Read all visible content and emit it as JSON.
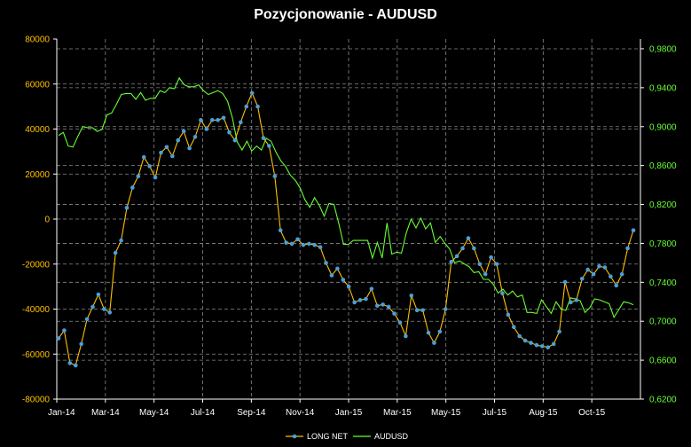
{
  "chart_data": {
    "type": "line",
    "title": "Pozycjonowanie - AUDUSD",
    "x_labels": [
      "Jan-14",
      "Mar-14",
      "May-14",
      "Jul-14",
      "Sep-14",
      "Nov-14",
      "Jan-15",
      "Mar-15",
      "May-15",
      "Jul-15",
      "Aug-15",
      "Oct-15"
    ],
    "left_axis": {
      "min": -80000,
      "max": 80000,
      "step": 20000,
      "tick_labels": [
        "-80000",
        "-60000",
        "-40000",
        "-20000",
        "0",
        "20000",
        "40000",
        "60000",
        "80000"
      ]
    },
    "right_axis": {
      "min": 0.62,
      "max": 0.99,
      "step": 0.04,
      "tick_labels": [
        "0,6200",
        "0,6600",
        "0,7000",
        "0,7400",
        "0,7800",
        "0,8200",
        "0,8600",
        "0,9000",
        "0,9400",
        "0,9800"
      ]
    },
    "grid": true,
    "legend_position": "bottom",
    "series": [
      {
        "name": "LONG NET",
        "axis": "left",
        "color": "#ffc000",
        "marker_color": "#4a9fd8",
        "values": [
          -53000,
          -49500,
          -64000,
          -65000,
          -55500,
          -44500,
          -39000,
          -33500,
          -40000,
          -41500,
          -15000,
          -9500,
          5000,
          14000,
          19000,
          27500,
          23500,
          18500,
          29500,
          32000,
          28000,
          35000,
          39000,
          31500,
          36500,
          44000,
          40000,
          44000,
          44000,
          45000,
          38500,
          35000,
          43000,
          50000,
          56000,
          50000,
          36000,
          32500,
          19000,
          -5000,
          -10500,
          -11000,
          -9000,
          -11500,
          -11000,
          -11500,
          -12500,
          -19500,
          -25000,
          -22000,
          -27000,
          -30000,
          -37000,
          -36000,
          -35500,
          -31000,
          -38500,
          -38000,
          -39000,
          -42000,
          -46000,
          -52000,
          -34000,
          -40500,
          -40500,
          -50500,
          -55000,
          -50000,
          -40000,
          -19000,
          -16500,
          -13000,
          -8500,
          -13000,
          -20000,
          -24500,
          -17000,
          -20000,
          -33000,
          -42500,
          -48000,
          -52000,
          -54000,
          -55000,
          -56000,
          -56500,
          -57000,
          -55500,
          -50000,
          -28000,
          -37000,
          -36000,
          -26500,
          -22500,
          -24500,
          -21000,
          -21500,
          -25500,
          -29500,
          -24500,
          -13000,
          -5000
        ]
      },
      {
        "name": "AUDUSD",
        "axis": "right",
        "color": "#66ff33",
        "values": [
          0.891,
          0.894,
          0.88,
          0.879,
          0.89,
          0.9,
          0.899,
          0.899,
          0.895,
          0.897,
          0.912,
          0.914,
          0.923,
          0.933,
          0.934,
          0.934,
          0.928,
          0.935,
          0.927,
          0.929,
          0.929,
          0.937,
          0.935,
          0.94,
          0.939,
          0.95,
          0.943,
          0.941,
          0.941,
          0.943,
          0.937,
          0.933,
          0.935,
          0.937,
          0.934,
          0.926,
          0.909,
          0.884,
          0.876,
          0.885,
          0.875,
          0.88,
          0.876,
          0.888,
          0.885,
          0.874,
          0.865,
          0.859,
          0.85,
          0.845,
          0.837,
          0.825,
          0.817,
          0.827,
          0.819,
          0.808,
          0.821,
          0.82,
          0.801,
          0.779,
          0.779,
          0.783,
          0.783,
          0.783,
          0.783,
          0.765,
          0.781,
          0.765,
          0.801,
          0.769,
          0.771,
          0.77,
          0.791,
          0.805,
          0.796,
          0.806,
          0.795,
          0.801,
          0.781,
          0.787,
          0.78,
          0.774,
          0.76,
          0.762,
          0.759,
          0.756,
          0.75,
          0.751,
          0.743,
          0.743,
          0.738,
          0.729,
          0.733,
          0.727,
          0.731,
          0.725,
          0.727,
          0.709,
          0.709,
          0.708,
          0.722,
          0.715,
          0.708,
          0.72,
          0.713,
          0.711,
          0.724,
          0.723,
          0.721,
          0.709,
          0.714,
          0.723,
          0.722,
          0.72,
          0.718,
          0.704,
          0.712,
          0.72,
          0.719,
          0.717
        ]
      }
    ]
  }
}
